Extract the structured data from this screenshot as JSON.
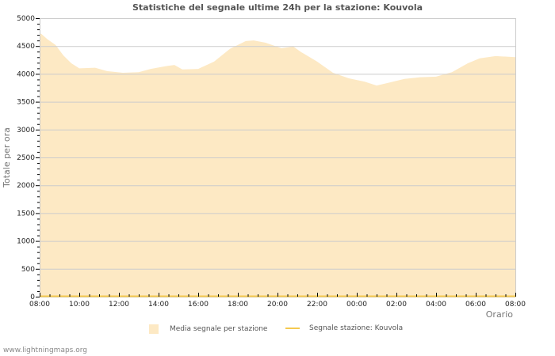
{
  "title": "Statistiche del segnale ultime 24h per la stazione: Kouvola",
  "footer": "www.lightningmaps.org",
  "legend": {
    "area_label": "Media segnale per stazione",
    "line_label": "Segnale stazione: Kouvola"
  },
  "colors": {
    "area_fill": "#fde9c4",
    "line": "#f5c94f",
    "grid": "#cccccc",
    "axis": "#cccccc"
  },
  "chart_data": {
    "type": "area",
    "title": "Statistiche del segnale ultime 24h per la stazione: Kouvola",
    "xlabel": "Orario",
    "ylabel": "Totale per ora",
    "ylim": [
      0,
      5000
    ],
    "yticks": [
      0,
      500,
      1000,
      1500,
      2000,
      2500,
      3000,
      3500,
      4000,
      4500,
      5000
    ],
    "xticks": [
      "08:00",
      "10:00",
      "12:00",
      "14:00",
      "16:00",
      "18:00",
      "20:00",
      "22:00",
      "00:00",
      "02:00",
      "04:00",
      "06:00",
      "08:00"
    ],
    "grid": true,
    "legend_position": "bottom",
    "series": [
      {
        "name": "Media segnale per stazione",
        "kind": "area",
        "x_hours": [
          0.08,
          0.4,
          0.8,
          1.2,
          1.6,
          2.0,
          2.8,
          3.4,
          4.2,
          5.0,
          5.6,
          6.4,
          6.8,
          7.2,
          8.0,
          8.8,
          9.6,
          10.4,
          10.8,
          11.4,
          12.2,
          12.8,
          13.2,
          14.0,
          14.8,
          15.6,
          16.4,
          17.0,
          17.6,
          18.4,
          19.2,
          20.0,
          20.8,
          21.6,
          22.2,
          23.0,
          24.0
        ],
        "values": [
          4720,
          4620,
          4520,
          4330,
          4190,
          4100,
          4110,
          4050,
          4020,
          4030,
          4090,
          4140,
          4160,
          4080,
          4090,
          4220,
          4450,
          4590,
          4600,
          4560,
          4460,
          4490,
          4390,
          4220,
          4020,
          3920,
          3860,
          3790,
          3840,
          3910,
          3940,
          3950,
          4030,
          4190,
          4280,
          4320,
          4300
        ]
      },
      {
        "name": "Segnale stazione: Kouvola",
        "kind": "line",
        "x_hours": [
          0,
          24
        ],
        "values": [
          0,
          0
        ]
      }
    ]
  }
}
